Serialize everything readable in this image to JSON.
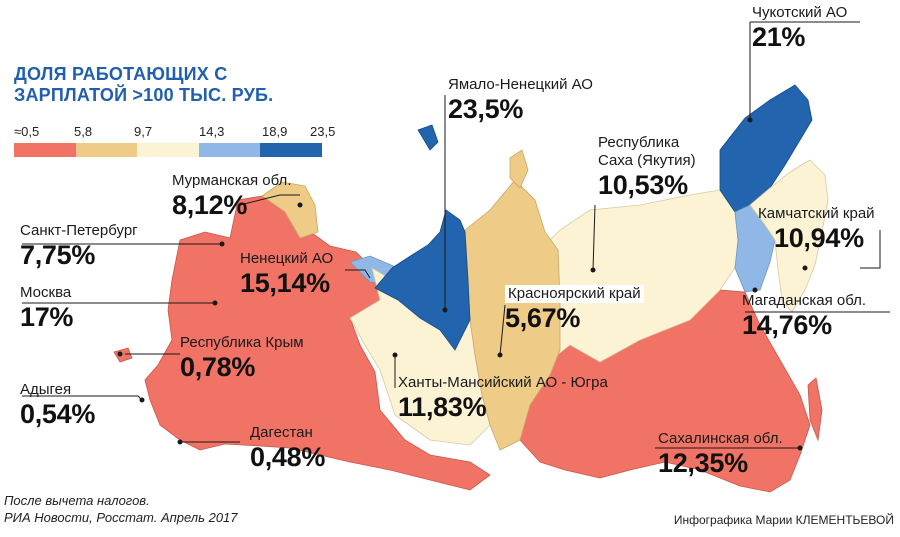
{
  "title": {
    "line1": "ДОЛЯ РАБОТАЮЩИХ С",
    "line2": "ЗАРПЛАТОЙ >100 ТЫС. РУБ."
  },
  "legend": {
    "ticks": [
      "≈0,5",
      "5,8",
      "9,7",
      "14,3",
      "18,9",
      "23,5"
    ],
    "colors": [
      "#f07366",
      "#eecb86",
      "#fcf2d4",
      "#8fb8e6",
      "#2264ad"
    ]
  },
  "regions": [
    {
      "name": "Мурманская обл.",
      "value": "8,12%"
    },
    {
      "name": "Санкт-Петербург",
      "value": "7,75%"
    },
    {
      "name": "Москва",
      "value": "17%"
    },
    {
      "name": "Адыгея",
      "value": "0,54%"
    },
    {
      "name": "Ненецкий АО",
      "value": "15,14%"
    },
    {
      "name": "Республика Крым",
      "value": "0,78%"
    },
    {
      "name": "Дагестан",
      "value": "0,48%"
    },
    {
      "name": "Ямало-Ненецкий АО",
      "value": "23,5%"
    },
    {
      "name": "Красноярский край",
      "value": "5,67%"
    },
    {
      "name": "Ханты-Мансийский АО - Югра",
      "value": "11,83%"
    },
    {
      "name": "Республика",
      "name2": "Саха (Якутия)",
      "value": "10,53%"
    },
    {
      "name": "Чукотский АО",
      "value": "21%"
    },
    {
      "name": "Камчатский край",
      "value": "10,94%"
    },
    {
      "name": "Магаданская обл.",
      "value": "14,76%"
    },
    {
      "name": "Сахалинская обл.",
      "value": "12,35%"
    }
  ],
  "footnote": {
    "line1": "После вычета налогов.",
    "line2": "РИА Новости, Росстат. Апрель 2017"
  },
  "credit": "Инфографика Марии КЛЕМЕНТЬЕВОЙ"
}
